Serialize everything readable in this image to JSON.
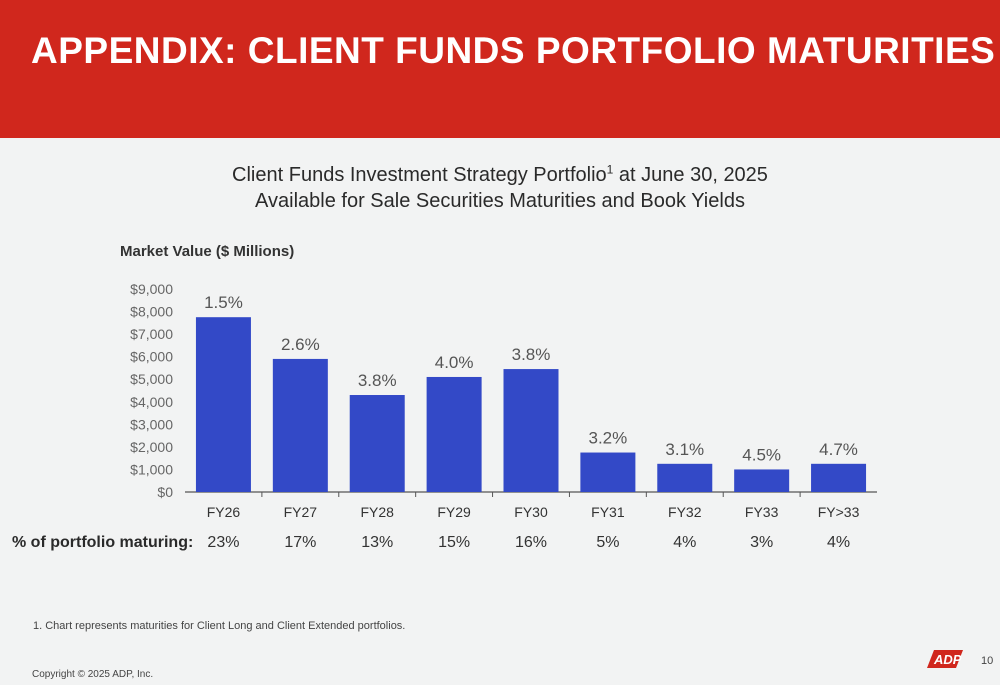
{
  "header": {
    "title": "APPENDIX: CLIENT FUNDS PORTFOLIO MATURITIES"
  },
  "chart_titles": {
    "line1_main": "Client Funds Investment Strategy Portfolio",
    "line1_sup": "1",
    "line1_tail": " at June 30, 2025",
    "line2": "Available for Sale Securities Maturities and Book Yields"
  },
  "chart_data": {
    "type": "bar",
    "ylabel": "Market Value ($ Millions)",
    "categories": [
      "FY26",
      "FY27",
      "FY28",
      "FY29",
      "FY30",
      "FY31",
      "FY32",
      "FY33",
      "FY>33"
    ],
    "values": [
      7750,
      5900,
      4300,
      5100,
      5450,
      1750,
      1250,
      1000,
      1250
    ],
    "data_labels": [
      "1.5%",
      "2.6%",
      "3.8%",
      "4.0%",
      "3.8%",
      "3.2%",
      "3.1%",
      "4.5%",
      "4.7%"
    ],
    "ylim": [
      0,
      9000
    ],
    "yticks": [
      0,
      1000,
      2000,
      3000,
      4000,
      5000,
      6000,
      7000,
      8000,
      9000
    ],
    "ytick_labels": [
      "$0",
      "$1,000",
      "$2,000",
      "$3,000",
      "$4,000",
      "$5,000",
      "$6,000",
      "$7,000",
      "$8,000",
      "$9,000"
    ],
    "bar_color": "#3349c7",
    "grid": false,
    "legend": "none"
  },
  "portfolio_maturing": {
    "label": "% of portfolio maturing:",
    "values": [
      "23%",
      "17%",
      "13%",
      "15%",
      "16%",
      "5%",
      "4%",
      "3%",
      "4%"
    ]
  },
  "footnote": "1.  Chart represents maturities for Client Long and Client Extended portfolios.",
  "footer": {
    "copyright": "Copyright © 2025 ADP, Inc.",
    "page_number": "10",
    "logo_icon": "adp-logo-icon"
  },
  "colors": {
    "header_bg": "#d0271d",
    "bar": "#3349c7",
    "background": "#f2f3f3"
  }
}
